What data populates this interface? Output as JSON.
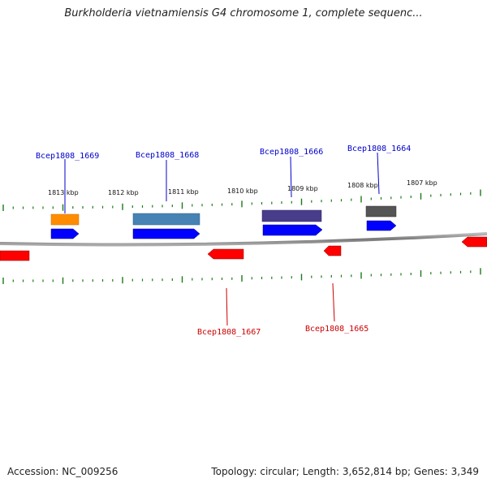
{
  "title": "Burkholderia vietnamiensis G4 chromosome 1, complete sequenc...",
  "footer": {
    "accession": "Accession: NC_009256",
    "topology": "Topology: circular; Length: 3,652,814 bp; Genes: 3,349"
  },
  "scale_labels": [
    "1813 kbp",
    "1812 kbp",
    "1811 kbp",
    "1810 kbp",
    "1809 kbp",
    "1808 kbp",
    "1807 kbp"
  ],
  "gene_labels": {
    "g1669": "Bcep1808_1669",
    "g1668": "Bcep1808_1668",
    "g1666": "Bcep1808_1666",
    "g1664": "Bcep1808_1664",
    "g1667": "Bcep1808_1667",
    "g1665": "Bcep1808_1665"
  },
  "colors": {
    "forward": "#0000ff",
    "reverse": "#ff0000",
    "label_forward": "#0000cc",
    "label_reverse": "#cc0000",
    "tick": "#1a7a1a",
    "backbone": "#888888",
    "feature_1669": "#ff8c00",
    "feature_1668": "#4682b4",
    "feature_1666": "#483d8b",
    "feature_1664": "#555555"
  }
}
